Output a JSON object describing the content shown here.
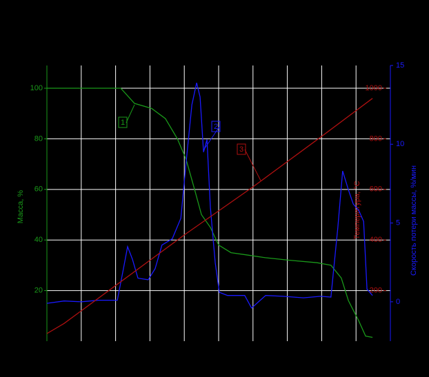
{
  "chart_data": {
    "type": "line",
    "xlim": [
      0,
      100
    ],
    "xticks": [
      10,
      20,
      30,
      40,
      50,
      60,
      70,
      80,
      90
    ],
    "ylim": [
      0,
      109
    ],
    "yticks": [
      20,
      40,
      60,
      80,
      100
    ],
    "ylabel": "Масса, %",
    "ycolor": "#1a9a1a",
    "y2lim": [
      -2.5,
      15
    ],
    "y2ticks": [
      0,
      5,
      10,
      15
    ],
    "y2label": "Скорость потери массы, %/мин",
    "y2color": "#1a1aff",
    "y3lim": [
      0,
      1090
    ],
    "y3ticks": [
      200,
      400,
      600,
      800,
      1000
    ],
    "y3label": "Температура, °С",
    "y3color": "#b01010",
    "grid": true,
    "annotations": [
      "1",
      "2",
      "3"
    ],
    "series": [
      {
        "color": "#1a9a1a",
        "axis": "y",
        "x": [
          0,
          21.5,
          25.5,
          30.5,
          34.5,
          38,
          40.5,
          43,
          45,
          47.6,
          50,
          53.6,
          58.6,
          63.6,
          70.7,
          78.7,
          82.7,
          85.7,
          87.8,
          90.8,
          92.8,
          94.8
        ],
        "values": [
          100,
          100,
          94,
          92,
          88,
          80,
          72,
          60,
          50,
          45,
          38,
          35,
          34,
          33,
          32,
          31,
          30,
          25,
          16,
          8,
          2,
          1.5
        ]
      },
      {
        "color": "#1a1aff",
        "axis": "y2",
        "x": [
          0,
          5,
          10,
          15,
          20.5,
          22.1,
          23.5,
          24.9,
          26.5,
          29.5,
          31.5,
          33.5,
          36.5,
          39,
          40.6,
          42.2,
          43.6,
          44.6,
          45.6,
          46.6,
          47.6,
          49,
          50.2,
          52.6,
          57.6,
          59.6,
          61.6,
          63.7,
          68.7,
          74.7,
          79.7,
          82.7,
          84.7,
          86.1,
          87.8,
          89.2,
          90.8,
          92.2,
          93.2,
          94.8
        ],
        "values": [
          -0.1,
          0.05,
          0,
          0.1,
          0.1,
          1.9,
          3.5,
          2.7,
          1.5,
          1.4,
          2.1,
          3.6,
          4.0,
          5.3,
          9.0,
          12.5,
          13.9,
          13.0,
          9.5,
          10.3,
          6.0,
          2.5,
          0.6,
          0.4,
          0.4,
          -0.4,
          0,
          0.4,
          0.35,
          0.25,
          0.35,
          0.3,
          4.7,
          8.3,
          7.1,
          6.2,
          5.8,
          5.1,
          0.8,
          0.4
        ]
      },
      {
        "color": "#b01010",
        "axis": "y3",
        "x": [
          0,
          5,
          10,
          20,
          40,
          60,
          80,
          94.8
        ],
        "values": [
          30,
          70,
          120,
          220,
          420,
          610,
          810,
          960
        ]
      }
    ]
  }
}
